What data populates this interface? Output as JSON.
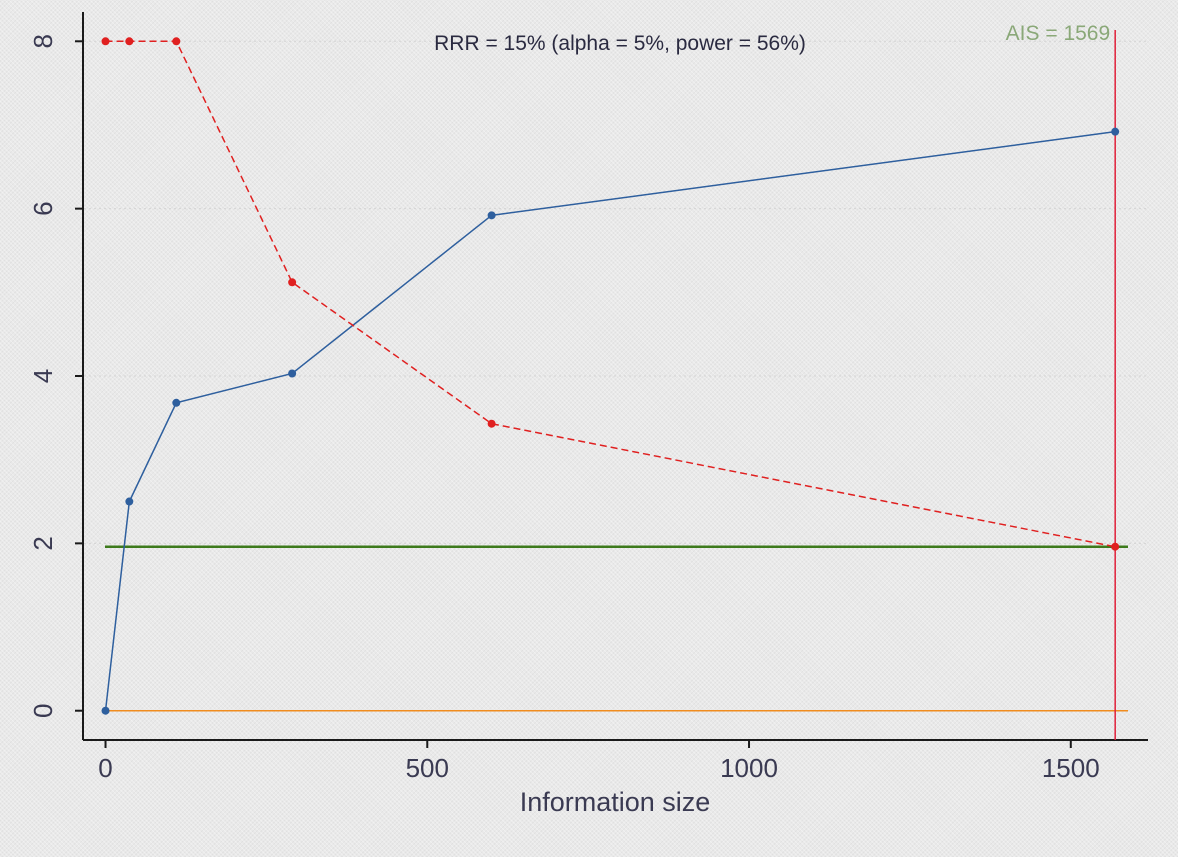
{
  "chart_data": {
    "type": "line",
    "title": "RRR =  15% (alpha = 5%, power = 56%)",
    "xlabel": "Information size",
    "ylabel": "",
    "xlim": [
      -35,
      1620
    ],
    "ylim": [
      -0.35,
      8.35
    ],
    "x_ticks": [
      0,
      500,
      1000,
      1500
    ],
    "y_ticks": [
      0,
      2,
      4,
      6,
      8
    ],
    "grid": "horizontal-dotted",
    "series": [
      {
        "color": "#2e5f9e",
        "line_style": "solid",
        "x": [
          0,
          37,
          110,
          290,
          600,
          1569
        ],
        "y": [
          0,
          2.5,
          3.68,
          4.03,
          5.92,
          6.92
        ]
      },
      {
        "color": "#e02020",
        "line_style": "dashed",
        "x": [
          0,
          37,
          110,
          290,
          600,
          1569
        ],
        "y": [
          8,
          8,
          8,
          5.12,
          3.43,
          1.96
        ]
      }
    ],
    "reference_lines": [
      {
        "kind": "horizontal",
        "value": 1.96,
        "color": "#3d7a1c"
      },
      {
        "kind": "horizontal",
        "value": 0,
        "color": "#f08c1e"
      },
      {
        "kind": "vertical",
        "value": 1569,
        "color": "#e0203a"
      }
    ],
    "annotations": [
      {
        "text": "AIS = 1569",
        "color": "#8aa878"
      }
    ]
  }
}
